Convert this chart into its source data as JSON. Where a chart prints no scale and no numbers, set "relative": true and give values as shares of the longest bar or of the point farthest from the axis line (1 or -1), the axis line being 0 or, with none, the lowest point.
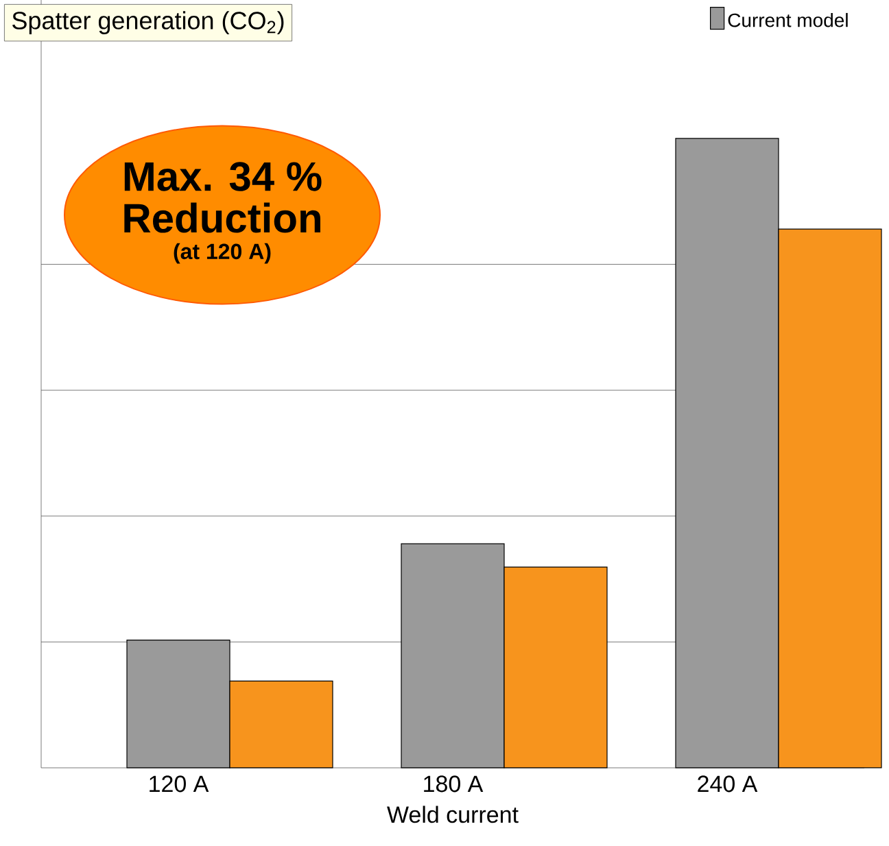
{
  "chart_data": {
    "type": "bar",
    "title": "Spatter generation (CO$_{2}$)",
    "xlabel": "Weld current",
    "categories": [
      "120 A",
      "180 A",
      "240 A"
    ],
    "series": [
      {
        "name": "Current model",
        "color": "#9a9a9a",
        "values": [
          0.203,
          0.356,
          1
        ]
      },
      {
        "color": "#f7941d",
        "values": [
          0.138,
          0.319,
          0.856
        ]
      }
    ],
    "relative": true,
    "grid": "y",
    "legend": "top right",
    "annotations": [
      "Max. 34 %",
      "Reduction",
      "(at 120 A)"
    ]
  }
}
